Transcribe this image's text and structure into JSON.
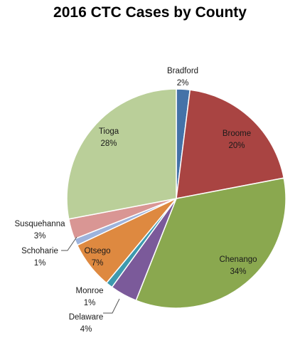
{
  "chart_data": {
    "type": "pie",
    "title": "2016 CTC Cases by County",
    "slices": [
      {
        "label": "Bradford",
        "value": 2,
        "value_label": "2%",
        "color": "#4472A8"
      },
      {
        "label": "Broome",
        "value": 20,
        "value_label": "20%",
        "color": "#A94442"
      },
      {
        "label": "Chenango",
        "value": 34,
        "value_label": "34%",
        "color": "#8AA84F"
      },
      {
        "label": "Delaware",
        "value": 4,
        "value_label": "4%",
        "color": "#7B5A9A"
      },
      {
        "label": "Monroe",
        "value": 1,
        "value_label": "1%",
        "color": "#3E9AAE"
      },
      {
        "label": "Otsego",
        "value": 7,
        "value_label": "7%",
        "color": "#DE8940"
      },
      {
        "label": "Schoharie",
        "value": 1,
        "value_label": "1%",
        "color": "#9DB3DC"
      },
      {
        "label": "Susquehanna",
        "value": 3,
        "value_label": "3%",
        "color": "#D99694"
      },
      {
        "label": "Tioga",
        "value": 28,
        "value_label": "28%",
        "color": "#BACF99"
      }
    ],
    "legend": "none"
  }
}
